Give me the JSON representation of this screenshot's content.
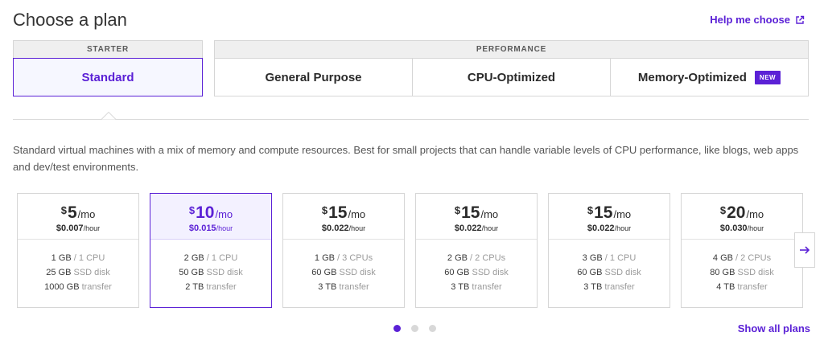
{
  "header": {
    "title": "Choose a plan",
    "help_link": "Help me choose",
    "help_icon": "external-link-icon"
  },
  "groups": {
    "starter": "STARTER",
    "performance": "PERFORMANCE"
  },
  "tabs": [
    {
      "label": "Standard",
      "selected": true
    },
    {
      "label": "General Purpose",
      "selected": false
    },
    {
      "label": "CPU-Optimized",
      "selected": false
    },
    {
      "label": "Memory-Optimized",
      "selected": false,
      "badge": "NEW"
    }
  ],
  "description": "Standard virtual machines with a mix of memory and compute resources. Best for small projects that can handle variable levels of CPU performance, like blogs, web apps and dev/test environments.",
  "plans": [
    {
      "currency": "$",
      "amount": "5",
      "per": "/mo",
      "hourly": "$0.007",
      "hourly_unit": "/hour",
      "memory": "1 GB",
      "cpu": " / 1 CPU",
      "disk": "25 GB",
      "disk_unit": " SSD disk",
      "transfer": "1000 GB",
      "transfer_unit": " transfer",
      "selected": false
    },
    {
      "currency": "$",
      "amount": "10",
      "per": "/mo",
      "hourly": "$0.015",
      "hourly_unit": "/hour",
      "memory": "2 GB",
      "cpu": " / 1 CPU",
      "disk": "50 GB",
      "disk_unit": " SSD disk",
      "transfer": "2 TB",
      "transfer_unit": " transfer",
      "selected": true
    },
    {
      "currency": "$",
      "amount": "15",
      "per": "/mo",
      "hourly": "$0.022",
      "hourly_unit": "/hour",
      "memory": "1 GB",
      "cpu": " / 3 CPUs",
      "disk": "60 GB",
      "disk_unit": " SSD disk",
      "transfer": "3 TB",
      "transfer_unit": " transfer",
      "selected": false
    },
    {
      "currency": "$",
      "amount": "15",
      "per": "/mo",
      "hourly": "$0.022",
      "hourly_unit": "/hour",
      "memory": "2 GB",
      "cpu": " / 2 CPUs",
      "disk": "60 GB",
      "disk_unit": " SSD disk",
      "transfer": "3 TB",
      "transfer_unit": " transfer",
      "selected": false
    },
    {
      "currency": "$",
      "amount": "15",
      "per": "/mo",
      "hourly": "$0.022",
      "hourly_unit": "/hour",
      "memory": "3 GB",
      "cpu": " / 1 CPU",
      "disk": "60 GB",
      "disk_unit": " SSD disk",
      "transfer": "3 TB",
      "transfer_unit": " transfer",
      "selected": false
    },
    {
      "currency": "$",
      "amount": "20",
      "per": "/mo",
      "hourly": "$0.030",
      "hourly_unit": "/hour",
      "memory": "4 GB",
      "cpu": " / 2 CPUs",
      "disk": "80 GB",
      "disk_unit": " SSD disk",
      "transfer": "4 TB",
      "transfer_unit": " transfer",
      "selected": false
    }
  ],
  "carousel": {
    "next_icon": "arrow-right-icon",
    "pages": 3,
    "active_page": 1
  },
  "footer": {
    "show_all": "Show all plans"
  },
  "colors": {
    "accent": "#5b21d6",
    "selected_bg": "#f6f7ff",
    "border": "#d6d6d6"
  }
}
